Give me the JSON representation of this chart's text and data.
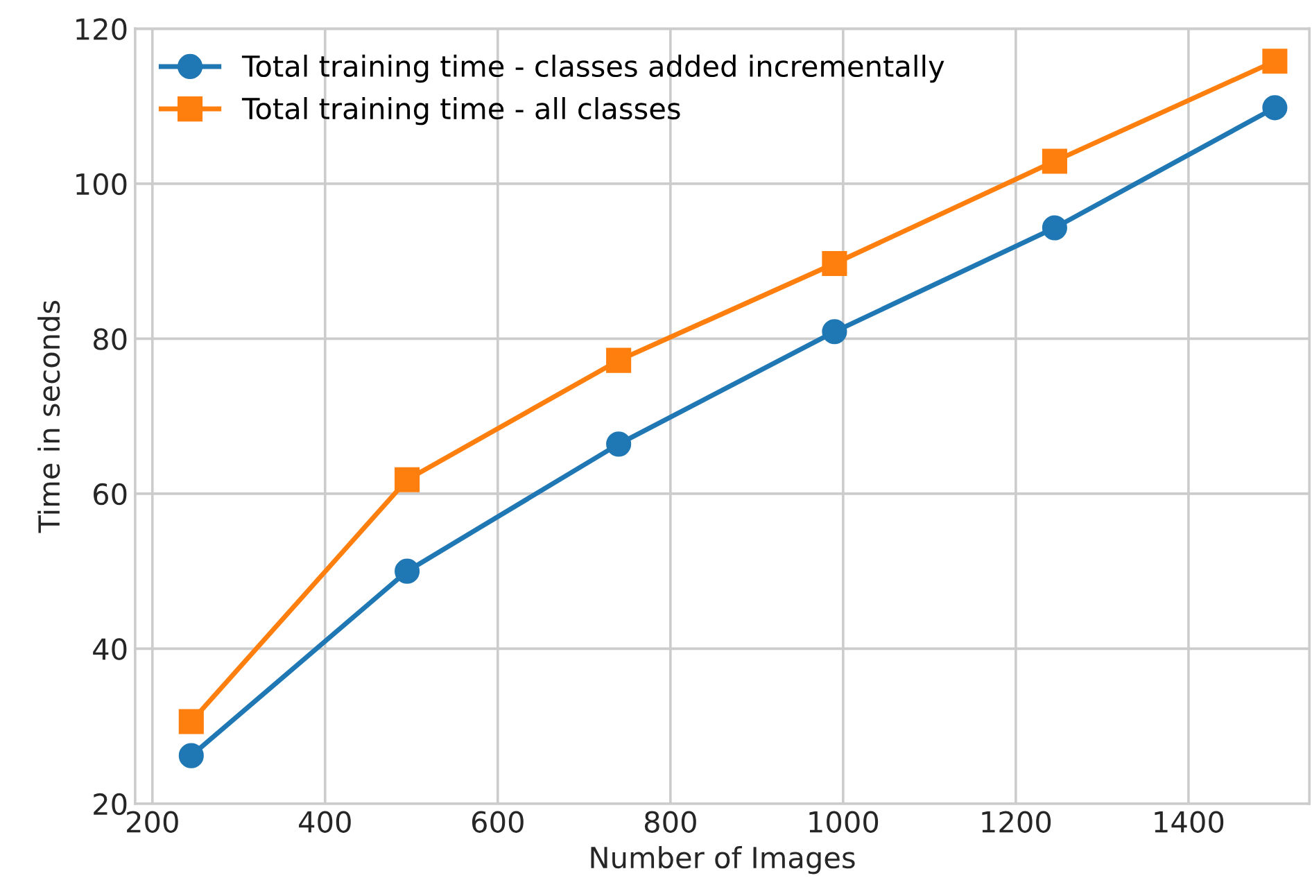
{
  "chart_data": {
    "type": "line",
    "xlabel": "Number of Images",
    "ylabel": "Time in seconds",
    "x": [
      245,
      495,
      740,
      990,
      1245,
      1500
    ],
    "series": [
      {
        "name": "Total training time - classes added incrementally",
        "color": "#1f77b4",
        "marker": "circle",
        "values": [
          26.2,
          50.0,
          66.4,
          80.9,
          94.3,
          109.8
        ]
      },
      {
        "name": "Total training time - all classes",
        "color": "#ff7f0e",
        "marker": "square",
        "values": [
          30.6,
          61.8,
          77.2,
          89.7,
          102.9,
          115.8
        ]
      }
    ],
    "xlim": [
      180,
      1540
    ],
    "xticks": [
      200,
      400,
      600,
      800,
      1000,
      1200,
      1400
    ],
    "ylim": [
      20,
      120
    ],
    "yticks": [
      20,
      40,
      60,
      80,
      100,
      120
    ],
    "grid": true,
    "legend": "top left",
    "line_style": "solid"
  }
}
